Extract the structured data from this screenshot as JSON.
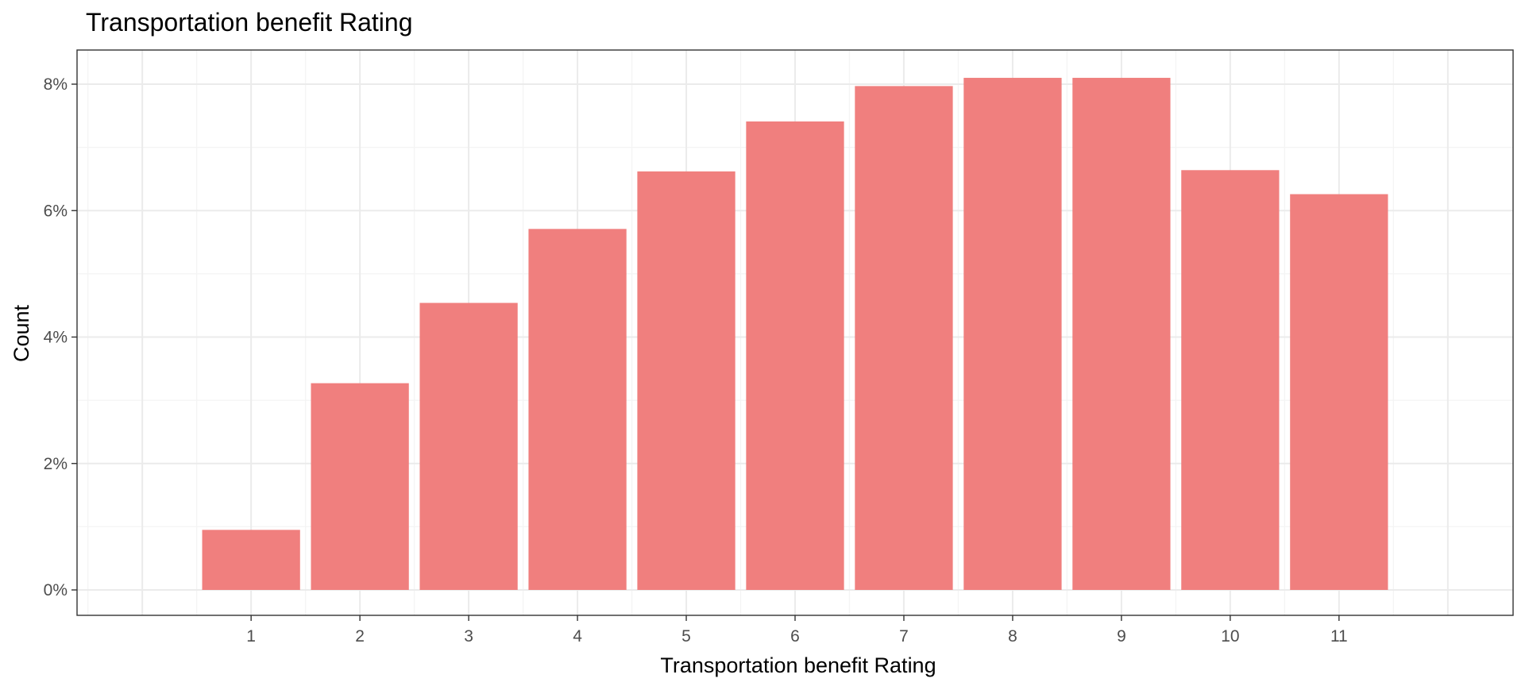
{
  "chart_data": {
    "type": "bar",
    "title": "Transportation benefit Rating",
    "xlabel": "Transportation benefit Rating",
    "ylabel": "Count",
    "categories": [
      "1",
      "2",
      "3",
      "4",
      "5",
      "6",
      "7",
      "8",
      "9",
      "10",
      "11"
    ],
    "values": [
      0.95,
      3.27,
      4.54,
      5.71,
      6.62,
      7.41,
      7.97,
      8.1,
      8.1,
      6.64,
      6.26
    ],
    "value_unit": "percent",
    "ylim": [
      0,
      8.5
    ],
    "yticks": [
      0,
      2,
      4,
      6,
      8
    ],
    "ytick_labels": [
      "0%",
      "2%",
      "4%",
      "6%",
      "8%"
    ],
    "xlim": [
      -0.6,
      12.6
    ],
    "grid": true,
    "legend": "none",
    "colors": {
      "bar": "#f07f7e",
      "grid_major": "#ebebeb",
      "grid_minor": "#f4f4f4",
      "panel_border": "#333333",
      "tick_text": "#4d4d4d"
    }
  }
}
